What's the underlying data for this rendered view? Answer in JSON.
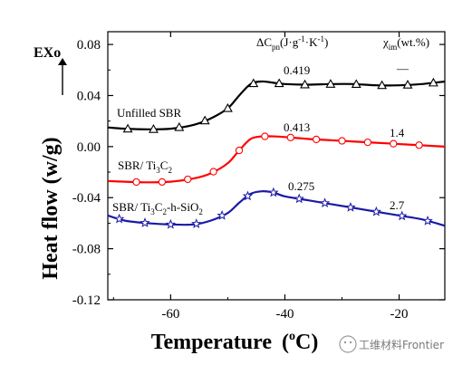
{
  "chart_data": {
    "type": "line",
    "xlabel": "Temperature",
    "xlabel_unit": "(°C)",
    "ylabel": "Heat flow (w/g)",
    "exo_label": "EXo",
    "xlim": [
      -71,
      -12
    ],
    "ylim": [
      -0.12,
      0.09
    ],
    "xticks": [
      -60,
      -40,
      -20
    ],
    "xtick_labels": [
      "-60",
      "-40",
      "-20"
    ],
    "yticks": [
      -0.12,
      -0.08,
      -0.04,
      0.0,
      0.04,
      0.08
    ],
    "ytick_labels": [
      "-0.12",
      "-0.08",
      "-0.04",
      "0.00",
      "0.04",
      "0.08"
    ],
    "grid": false,
    "header_labels": {
      "delta_cp": "ΔCpn(J·g⁻¹·K⁻¹)",
      "chi_im": "χim(wt.%)"
    },
    "series": [
      {
        "name": "Unfilled SBR",
        "color": "#000000",
        "marker": "open-triangle",
        "delta_cp": "0.419",
        "chi_im": "—",
        "x": [
          -71,
          -68,
          -64,
          -60,
          -56,
          -53,
          -50,
          -48,
          -46,
          -44,
          -42,
          -40,
          -36,
          -32,
          -28,
          -24,
          -20,
          -16,
          -12
        ],
        "y": [
          0.015,
          0.014,
          0.0135,
          0.014,
          0.017,
          0.022,
          0.03,
          0.04,
          0.049,
          0.051,
          0.05,
          0.049,
          0.0485,
          0.049,
          0.049,
          0.048,
          0.048,
          0.049,
          0.051
        ],
        "markers_x": [
          -67.5,
          -63,
          -58.5,
          -54,
          -50,
          -45.5,
          -41,
          -36.5,
          -32,
          -27.5,
          -23,
          -18.5,
          -14
        ]
      },
      {
        "name": "SBR/ Ti3C2",
        "color": "#ff0000",
        "marker": "open-circle",
        "delta_cp": "0.413",
        "chi_im": "1.4",
        "x": [
          -71,
          -68,
          -64,
          -60,
          -56,
          -53,
          -50,
          -48,
          -46,
          -44,
          -42,
          -40,
          -36,
          -32,
          -28,
          -24,
          -20,
          -16,
          -12
        ],
        "y": [
          -0.027,
          -0.0275,
          -0.028,
          -0.0275,
          -0.025,
          -0.021,
          -0.013,
          -0.003,
          0.006,
          0.008,
          0.008,
          0.0075,
          0.006,
          0.005,
          0.004,
          0.003,
          0.002,
          0.001,
          0.0
        ],
        "markers_x": [
          -66,
          -61.5,
          -57,
          -52.5,
          -48,
          -43.5,
          -39,
          -34.5,
          -30,
          -25.5,
          -21,
          -16.5
        ]
      },
      {
        "name": "SBR/ Ti3C2-h-SiO2",
        "color": "#1a1aa6",
        "marker": "open-star",
        "delta_cp": "0.275",
        "chi_im": "2.7",
        "x": [
          -71,
          -68,
          -64,
          -60,
          -56,
          -53,
          -50,
          -48,
          -46,
          -44,
          -42,
          -40,
          -36,
          -32,
          -28,
          -24,
          -20,
          -16,
          -12
        ],
        "y": [
          -0.054,
          -0.058,
          -0.06,
          -0.061,
          -0.061,
          -0.058,
          -0.052,
          -0.044,
          -0.037,
          -0.035,
          -0.036,
          -0.039,
          -0.042,
          -0.045,
          -0.048,
          -0.051,
          -0.054,
          -0.057,
          -0.062
        ],
        "markers_x": [
          -69,
          -64.5,
          -60,
          -55.5,
          -51,
          -46.5,
          -42,
          -37.5,
          -33,
          -28.5,
          -24,
          -19.5,
          -15
        ]
      }
    ]
  },
  "watermark": {
    "text": "工维材料Frontier",
    "icon": "wechat-icon"
  }
}
